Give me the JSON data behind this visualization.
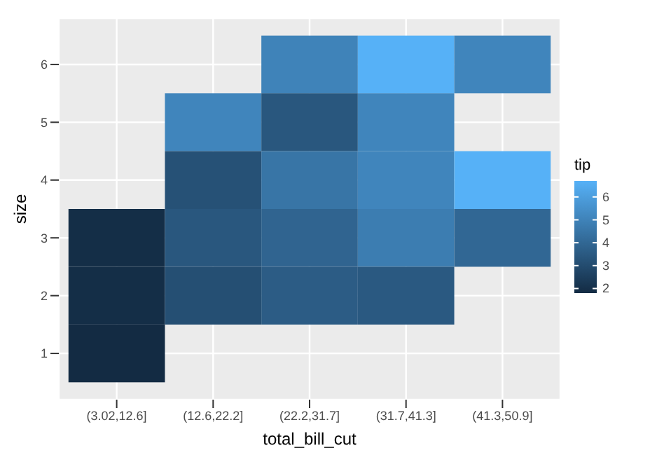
{
  "chart_data": {
    "type": "heatmap",
    "xlabel": "total_bill_cut",
    "ylabel": "size",
    "legend_title": "tip",
    "categories": [
      "(3.02,12.6]",
      "(12.6,22.2]",
      "(22.2,31.7]",
      "(31.7,41.3]",
      "(41.3,50.9]"
    ],
    "y_categories": [
      "6",
      "5",
      "4",
      "3",
      "2",
      "1"
    ],
    "cells": [
      [
        null,
        null,
        5.0,
        6.7,
        5.1
      ],
      [
        null,
        5.1,
        3.4,
        5.1,
        null
      ],
      [
        null,
        3.2,
        4.5,
        5.1,
        6.7
      ],
      [
        1.9,
        3.4,
        3.9,
        4.8,
        4.0
      ],
      [
        1.9,
        3.1,
        3.6,
        3.5,
        null
      ],
      [
        1.8,
        null,
        null,
        null,
        null
      ]
    ],
    "colors": [
      "#132b43",
      "#56b1f7"
    ],
    "clim": [
      1.8,
      6.7
    ],
    "cticks": [
      2,
      3,
      4,
      5,
      6
    ],
    "grid": true
  }
}
